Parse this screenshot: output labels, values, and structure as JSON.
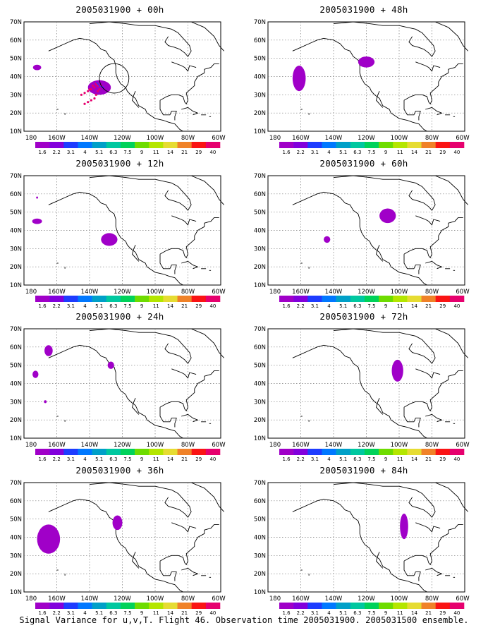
{
  "footer": "Signal Variance for u,v,T. Flight 46. Observation time 2005031900. 2005031500 ensemble.",
  "y_tick_labels": [
    "70N",
    "60N",
    "50N",
    "40N",
    "30N",
    "20N",
    "10N"
  ],
  "x_tick_labels": [
    "180",
    "160W",
    "140W",
    "120W",
    "100W",
    "80W",
    "60W"
  ],
  "colorbar": {
    "labels": [
      "1.6",
      "2.2",
      "3.1",
      "4",
      "5.1",
      "6.3",
      "7.5",
      "9",
      "11",
      "14",
      "21",
      "29",
      "40"
    ],
    "colors": [
      "#a000c8",
      "#8200dc",
      "#1e3cff",
      "#0078ff",
      "#00a0c8",
      "#00c8a0",
      "#00d25a",
      "#6edc00",
      "#b4e600",
      "#e6dc32",
      "#f08228",
      "#fa1414",
      "#e6006e"
    ]
  },
  "map": {
    "lon_range": [
      -180,
      -60
    ],
    "lat_range": [
      10,
      70
    ]
  },
  "panels": [
    {
      "title": "2005031900 + 00h",
      "blobs": [
        {
          "lon": -134,
          "lat": 34,
          "rx": 7,
          "ry": 4,
          "color": "#a000c8"
        },
        {
          "lon": -172,
          "lat": 45,
          "rx": 2.5,
          "ry": 1.5,
          "color": "#a000c8"
        }
      ],
      "dots": [
        [
          -145,
          30
        ],
        [
          -143,
          31
        ],
        [
          -141,
          32
        ],
        [
          -139,
          33
        ],
        [
          -137,
          34
        ],
        [
          -135,
          35
        ],
        [
          -133,
          35
        ],
        [
          -143,
          25
        ],
        [
          -141,
          26
        ],
        [
          -139,
          27
        ],
        [
          -137,
          28
        ],
        [
          -136,
          30
        ],
        [
          -135,
          32
        ],
        [
          -134,
          33
        ],
        [
          -140,
          33
        ],
        [
          -138,
          35
        ],
        [
          -136,
          36
        ]
      ],
      "circle": {
        "lon": -125,
        "lat": 39,
        "r": 9
      },
      "track": [
        [
          -136,
          37
        ],
        [
          -134,
          35
        ],
        [
          -131,
          34
        ]
      ]
    },
    {
      "title": "2005031900 + 48h",
      "blobs": [
        {
          "lon": -161,
          "lat": 39,
          "rx": 4,
          "ry": 7,
          "color": "#a000c8"
        },
        {
          "lon": -120,
          "lat": 48,
          "rx": 5,
          "ry": 3,
          "color": "#a000c8"
        }
      ]
    },
    {
      "title": "2005031900 + 12h",
      "blobs": [
        {
          "lon": -172,
          "lat": 45,
          "rx": 3,
          "ry": 1.5,
          "color": "#a000c8"
        },
        {
          "lon": -172,
          "lat": 58,
          "rx": 0.6,
          "ry": 0.6,
          "color": "#a000c8"
        },
        {
          "lon": -128,
          "lat": 35,
          "rx": 5,
          "ry": 3.5,
          "color": "#a000c8"
        }
      ]
    },
    {
      "title": "2005031900 + 60h",
      "blobs": [
        {
          "lon": -107,
          "lat": 48,
          "rx": 5,
          "ry": 4,
          "color": "#a000c8"
        },
        {
          "lon": -144,
          "lat": 35,
          "rx": 2,
          "ry": 1.8,
          "color": "#a000c8"
        }
      ]
    },
    {
      "title": "2005031900 + 24h",
      "blobs": [
        {
          "lon": -165,
          "lat": 58,
          "rx": 2.5,
          "ry": 3,
          "color": "#a000c8"
        },
        {
          "lon": -173,
          "lat": 45,
          "rx": 1.8,
          "ry": 2,
          "color": "#a000c8"
        },
        {
          "lon": -167,
          "lat": 30,
          "rx": 0.8,
          "ry": 0.8,
          "color": "#a000c8"
        },
        {
          "lon": -127,
          "lat": 50,
          "rx": 2,
          "ry": 2,
          "color": "#a000c8"
        }
      ]
    },
    {
      "title": "2005031900 + 72h",
      "blobs": [
        {
          "lon": -101,
          "lat": 47,
          "rx": 3.5,
          "ry": 6,
          "color": "#a000c8"
        }
      ]
    },
    {
      "title": "2005031900 + 36h",
      "blobs": [
        {
          "lon": -165,
          "lat": 39,
          "rx": 7,
          "ry": 8,
          "color": "#a000c8"
        },
        {
          "lon": -123,
          "lat": 48,
          "rx": 3,
          "ry": 4,
          "color": "#a000c8"
        }
      ]
    },
    {
      "title": "2005031900 + 84h",
      "blobs": [
        {
          "lon": -97,
          "lat": 46,
          "rx": 2.5,
          "ry": 7,
          "color": "#a000c8"
        }
      ]
    }
  ]
}
